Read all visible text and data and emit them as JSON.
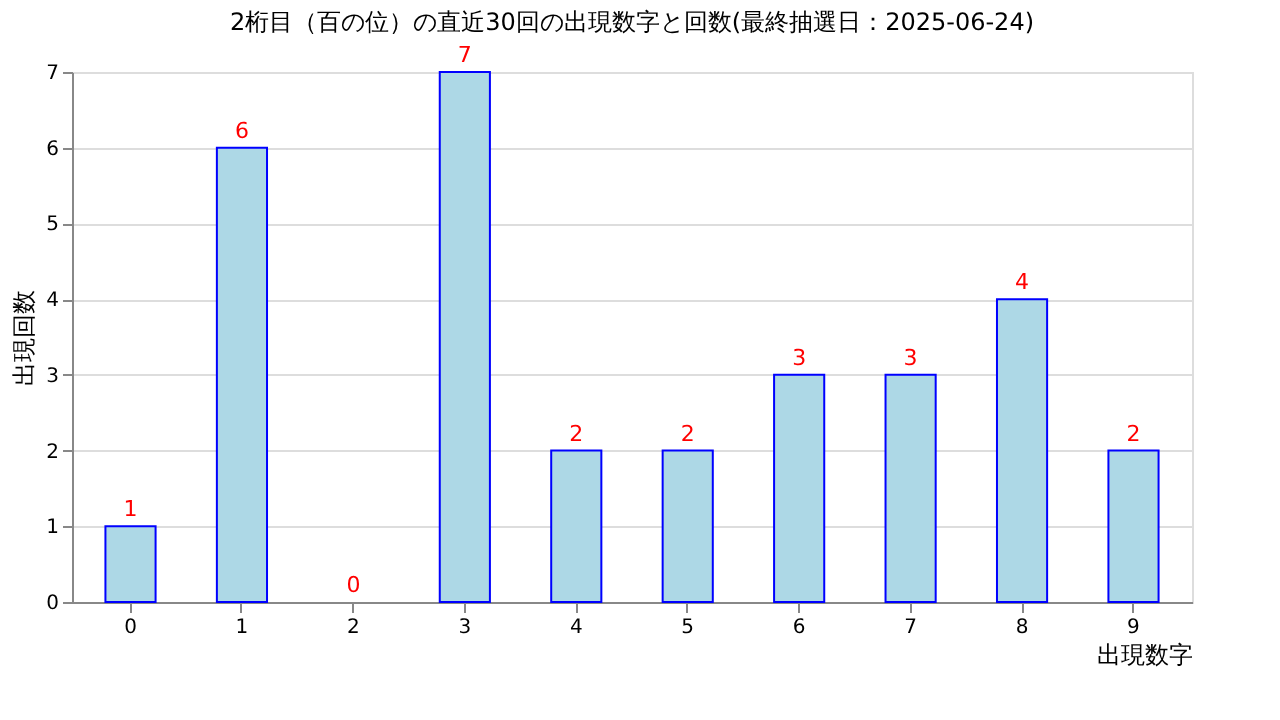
{
  "chart_data": {
    "type": "bar",
    "title": "2桁目（百の位）の直近30回の出現数字と回数(最終抽選日：2025-06-24)",
    "categories": [
      "0",
      "1",
      "2",
      "3",
      "4",
      "5",
      "6",
      "7",
      "8",
      "9"
    ],
    "values": [
      1,
      6,
      0,
      7,
      2,
      2,
      3,
      3,
      4,
      2
    ],
    "color": "#add8e6",
    "xlabel": "出現数字",
    "ylabel": "出現回数",
    "ylim": [
      0,
      7
    ],
    "yticks": [
      0,
      1,
      2,
      3,
      4,
      5,
      6,
      7
    ],
    "grid": "y",
    "data_labels": true
  }
}
